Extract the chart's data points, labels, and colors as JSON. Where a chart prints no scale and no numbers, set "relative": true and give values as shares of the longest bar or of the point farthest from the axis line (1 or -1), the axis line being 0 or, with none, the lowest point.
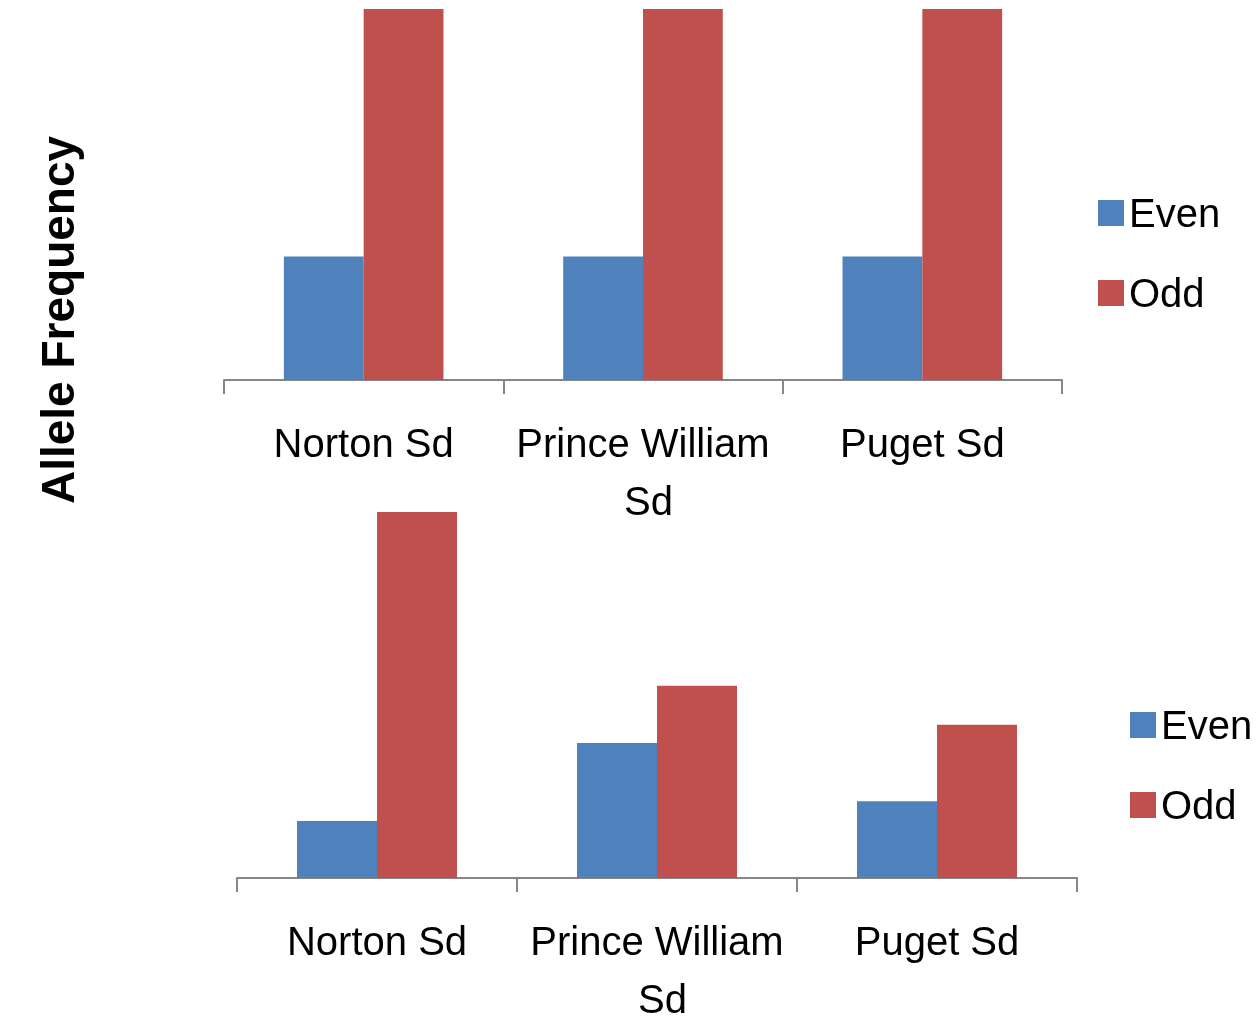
{
  "chart_data": [
    {
      "type": "bar",
      "ylabel": "Allele Frequency",
      "relative": true,
      "categories": [
        "Norton Sd",
        "Prince William Sd",
        "Puget Sd"
      ],
      "legend": "right",
      "grid": false,
      "series": [
        {
          "name": "Even",
          "color": "#4f81bd",
          "values": [
            0.333,
            0.333,
            0.333
          ]
        },
        {
          "name": "Odd",
          "color": "#c0504d",
          "values": [
            1,
            1,
            1
          ]
        }
      ]
    },
    {
      "type": "bar",
      "relative": true,
      "categories": [
        "Norton Sd",
        "Prince William Sd",
        "Puget Sd"
      ],
      "legend": "right",
      "grid": false,
      "series": [
        {
          "name": "Even",
          "color": "#4f81bd",
          "values": [
            0.156,
            0.369,
            0.21
          ]
        },
        {
          "name": "Odd",
          "color": "#c0504d",
          "values": [
            1,
            0.525,
            0.419
          ]
        }
      ]
    }
  ]
}
